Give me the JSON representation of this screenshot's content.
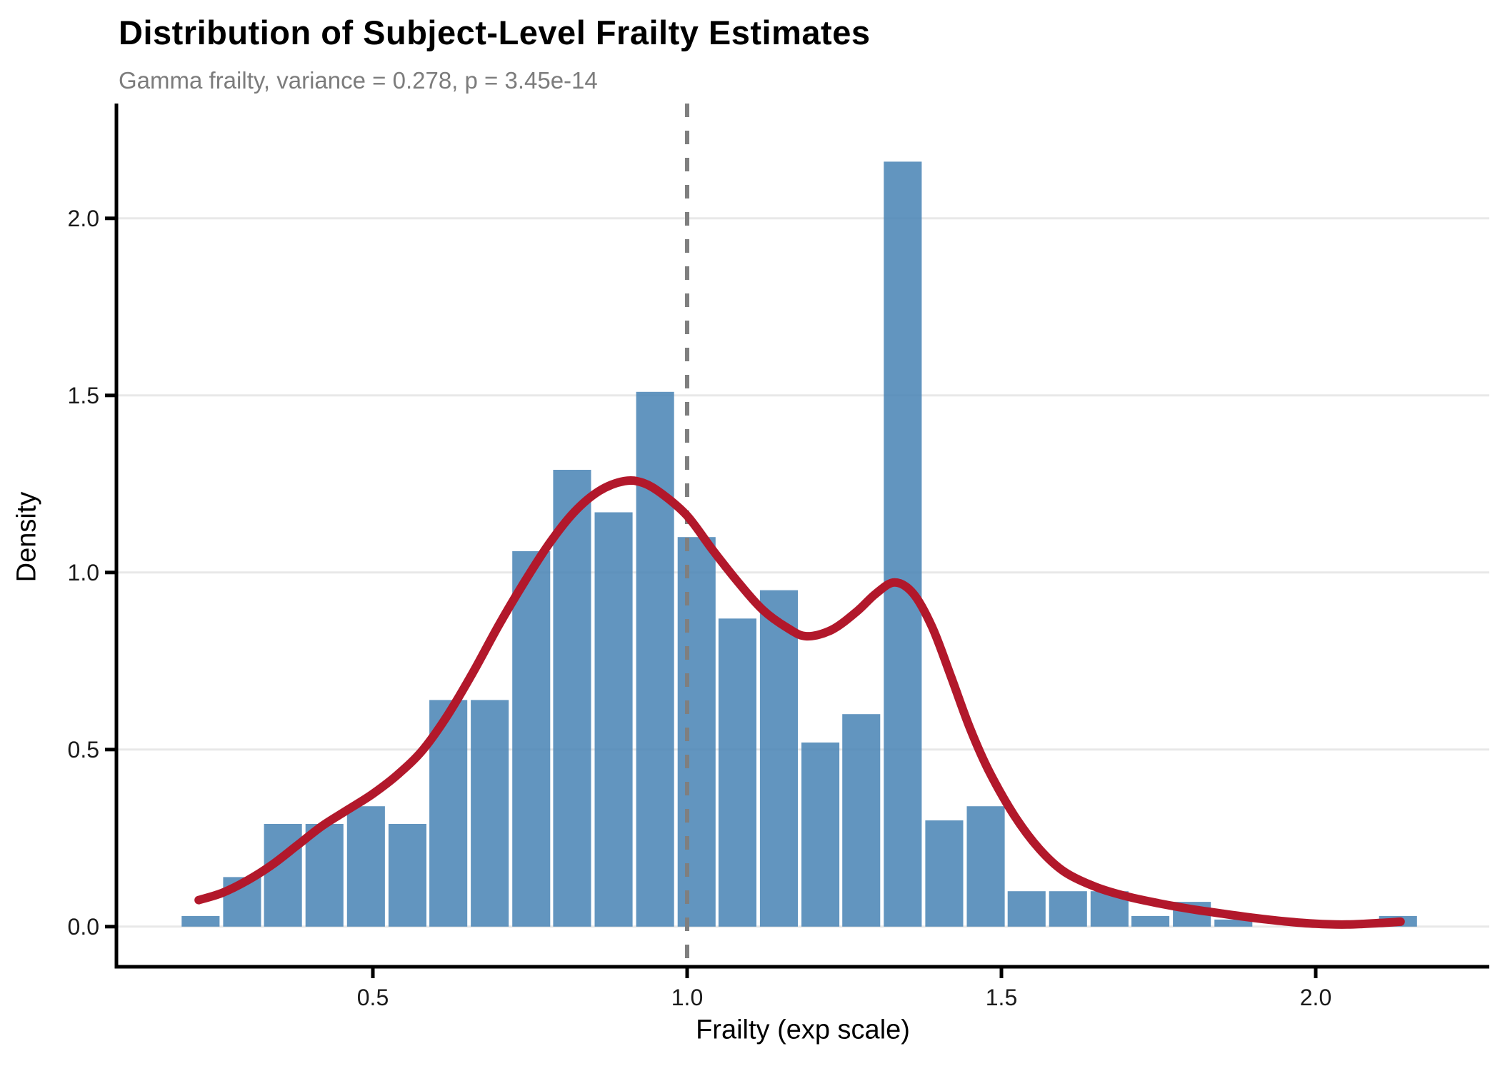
{
  "title": "Distribution of Subject-Level Frailty Estimates",
  "subtitle": "Gamma frailty, variance = 0.278, p = 3.45e-14",
  "colors": {
    "background": "#FFFFFF",
    "bar_fill": "rgba(70,130,180,0.85)",
    "density_curve": "#B2182B",
    "reference_line": "#7F7F7F",
    "gridline": "#E8E8E8",
    "axis_line": "#000000",
    "tick_label": "#1A1A1A",
    "title": "#000000",
    "subtitle": "#7C7C7C"
  },
  "chart_data": {
    "type": "histogram",
    "title": "Distribution of Subject-Level Frailty Estimates",
    "subtitle": "Gamma frailty, variance = 0.278, p = 3.45e-14",
    "xlabel": "Frailty (exp scale)",
    "ylabel": "Density",
    "xlim": [
      0.09,
      2.28
    ],
    "ylim": [
      0,
      2.31
    ],
    "grid": "horizontal major gridlines only",
    "legend": "none",
    "x_tick_values": [
      0.5,
      1.0,
      1.5,
      2.0
    ],
    "x_tick_labels": [
      "0.5",
      "1.0",
      "1.5",
      "2.0"
    ],
    "y_tick_values": [
      0.0,
      0.5,
      1.0,
      1.5,
      2.0
    ],
    "y_tick_labels": [
      "0.0",
      "0.5",
      "1.0",
      "1.5",
      "2.0"
    ],
    "bin_width": 0.066,
    "bin_centers": [
      0.226,
      0.292,
      0.357,
      0.423,
      0.489,
      0.555,
      0.62,
      0.686,
      0.752,
      0.817,
      0.883,
      0.949,
      1.015,
      1.08,
      1.146,
      1.212,
      1.277,
      1.343,
      1.409,
      1.475,
      1.54,
      1.606,
      1.672,
      1.737,
      1.803,
      1.869,
      1.934,
      2.0,
      2.066,
      2.131
    ],
    "densities": [
      0.03,
      0.14,
      0.29,
      0.29,
      0.34,
      0.29,
      0.64,
      0.64,
      1.06,
      1.29,
      1.17,
      1.51,
      1.1,
      0.87,
      0.95,
      0.52,
      0.6,
      2.16,
      0.3,
      0.34,
      0.1,
      0.1,
      0.1,
      0.03,
      0.07,
      0.02,
      0,
      0,
      0,
      0.03
    ],
    "reference_vline_x": 1.0,
    "reference_vline_style": "dashed",
    "density_curve": {
      "x": [
        0.223,
        0.26,
        0.3,
        0.34,
        0.38,
        0.42,
        0.46,
        0.5,
        0.54,
        0.58,
        0.62,
        0.66,
        0.7,
        0.74,
        0.78,
        0.82,
        0.86,
        0.9,
        0.93,
        0.96,
        1.0,
        1.04,
        1.08,
        1.12,
        1.16,
        1.19,
        1.23,
        1.27,
        1.3,
        1.33,
        1.36,
        1.39,
        1.42,
        1.45,
        1.48,
        1.52,
        1.56,
        1.6,
        1.65,
        1.7,
        1.75,
        1.8,
        1.85,
        1.9,
        1.95,
        2.0,
        2.05,
        2.1,
        2.135
      ],
      "y": [
        0.075,
        0.095,
        0.13,
        0.175,
        0.23,
        0.285,
        0.33,
        0.375,
        0.43,
        0.5,
        0.6,
        0.72,
        0.85,
        0.97,
        1.08,
        1.17,
        1.23,
        1.258,
        1.253,
        1.222,
        1.16,
        1.065,
        0.975,
        0.895,
        0.843,
        0.82,
        0.838,
        0.89,
        0.94,
        0.972,
        0.94,
        0.845,
        0.705,
        0.56,
        0.44,
        0.315,
        0.22,
        0.155,
        0.112,
        0.085,
        0.066,
        0.05,
        0.037,
        0.025,
        0.015,
        0.008,
        0.006,
        0.01,
        0.014
      ]
    }
  }
}
